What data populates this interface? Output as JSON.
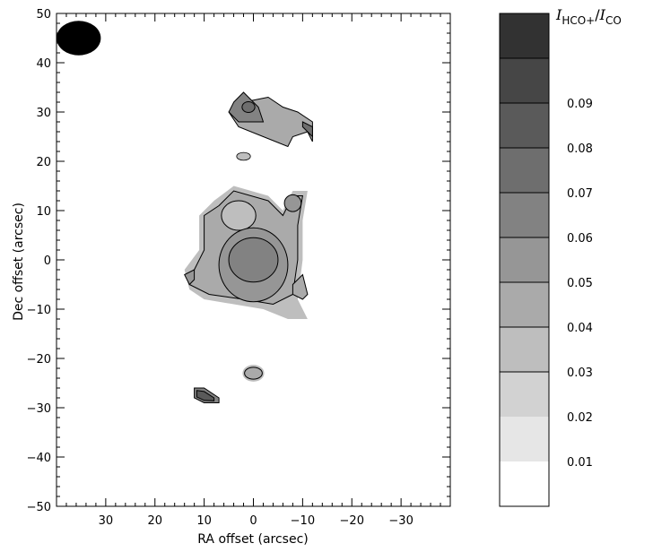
{
  "chart_data": {
    "type": "heatmap",
    "title": "",
    "xlabel": "RA offset (arcsec)",
    "ylabel": "Dec offset (arcsec)",
    "xlim": [
      40,
      -40
    ],
    "ylim": [
      -50,
      50
    ],
    "x_ticks": [
      30,
      20,
      10,
      0,
      -10,
      -20,
      -30
    ],
    "x_tick_labels": [
      "30",
      "20",
      "10",
      "0",
      "−10",
      "−20",
      "−30"
    ],
    "y_ticks": [
      50,
      40,
      30,
      20,
      10,
      0,
      -10,
      -20,
      -30,
      -40,
      -50
    ],
    "y_tick_labels": [
      "50",
      "40",
      "30",
      "20",
      "10",
      "0",
      "−10",
      "−20",
      "−30",
      "−40",
      "−50"
    ],
    "beam": {
      "ra": 35.5,
      "dec": 45,
      "width_arcsec": 9,
      "height_arcsec": 7
    },
    "colorbar": {
      "label_main": "I",
      "label_main_sub": "HCO+",
      "label_sep": "/",
      "label_denom": "I",
      "label_denom_sub": "CO",
      "levels": [
        0.0,
        0.01,
        0.02,
        0.03,
        0.04,
        0.05,
        0.06,
        0.07,
        0.08,
        0.09,
        0.1
      ],
      "tick_labels": [
        "0.01",
        "0.02",
        "0.03",
        "0.04",
        "0.05",
        "0.06",
        "0.07",
        "0.08",
        "0.09"
      ],
      "colors": [
        "#ffffff",
        "#e6e6e6",
        "#d2d2d2",
        "#bebebe",
        "#aaaaaa",
        "#969696",
        "#828282",
        "#6e6e6e",
        "#5a5a5a",
        "#464646",
        "#323232"
      ]
    },
    "regions": [
      {
        "name": "central-blob",
        "ra": 2,
        "dec": 3,
        "level": 0.04
      },
      {
        "name": "central-core",
        "ra": 0,
        "dec": 0,
        "level": 0.06
      },
      {
        "name": "northern-clump",
        "ra": -4,
        "dec": 29,
        "level": 0.05
      },
      {
        "name": "northern-peak",
        "ra": 1,
        "dec": 31,
        "level": 0.07
      },
      {
        "name": "southern-clump",
        "ra": 9.5,
        "dec": -27.5,
        "level": 0.08
      },
      {
        "name": "small-clump",
        "ra": 0,
        "dec": -23,
        "level": 0.04
      }
    ]
  }
}
